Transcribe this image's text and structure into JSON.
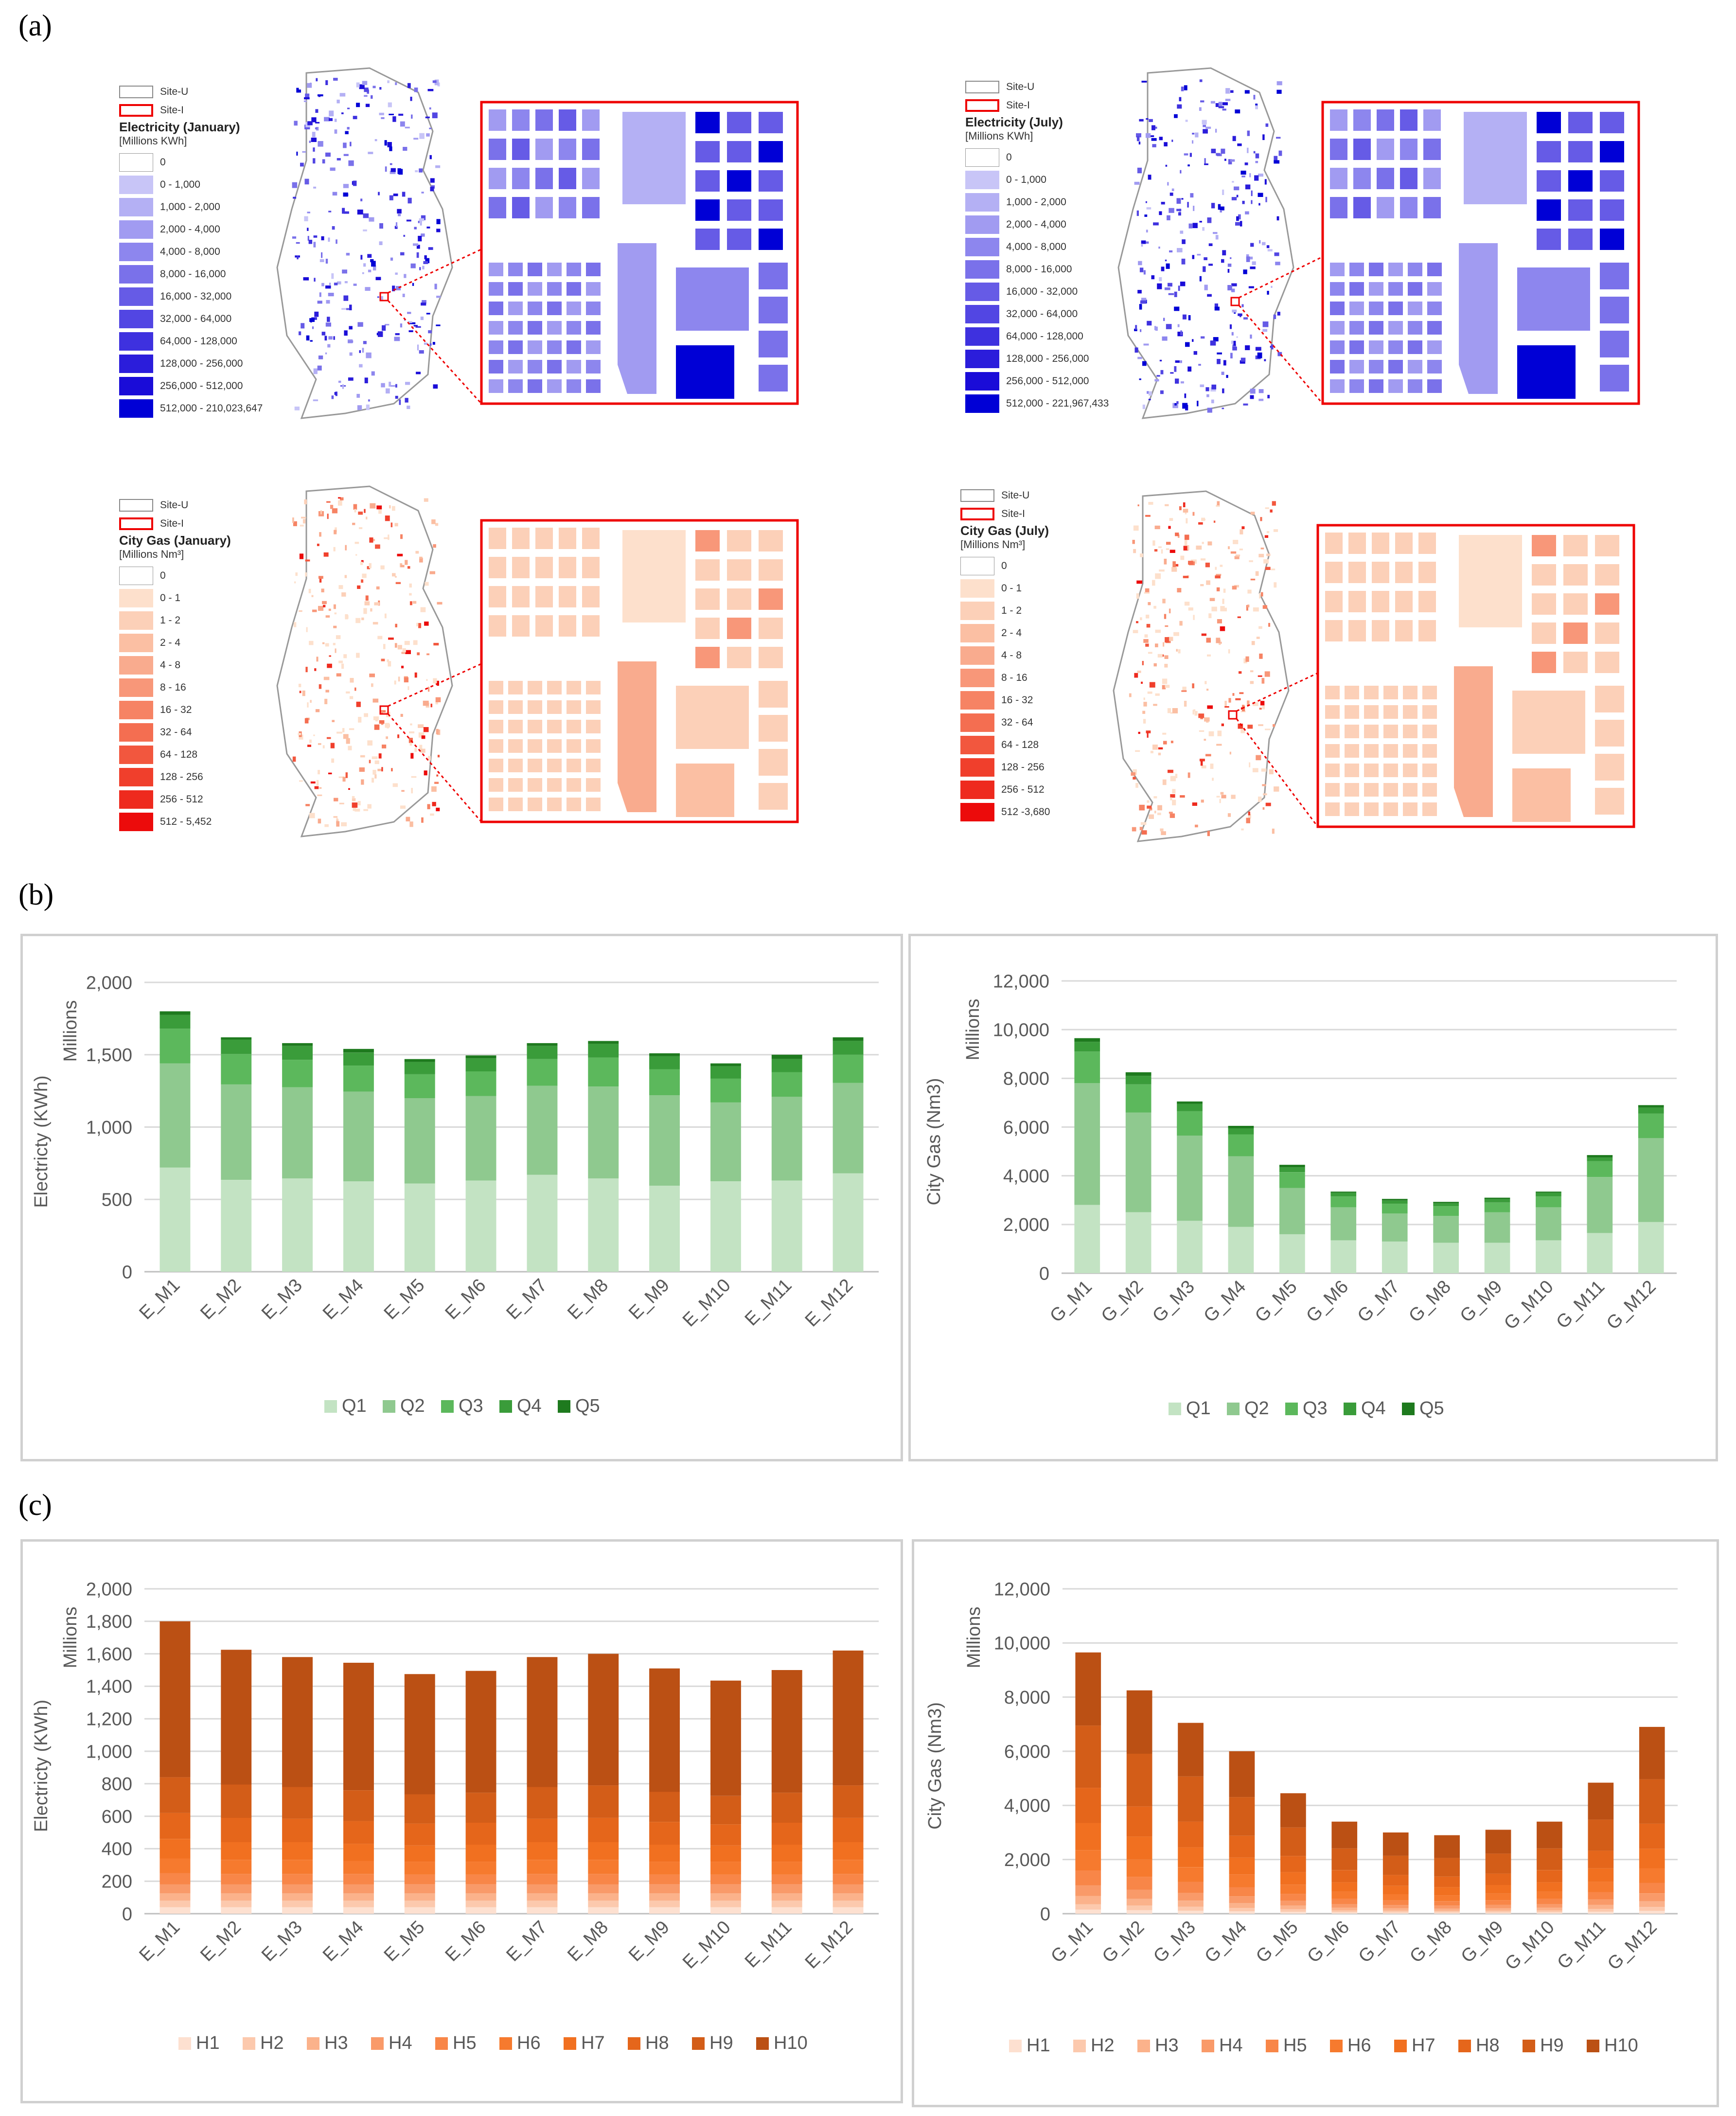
{
  "labels": {
    "a": "(a)",
    "b": "(b)",
    "c": "(c)"
  },
  "maps": {
    "site_u": "Site-U",
    "site_i": "Site-I",
    "elec_jan": {
      "title": "Electricity (January)",
      "unit": "[Millions KWh]",
      "classes": [
        "0",
        "0 - 1,000",
        "1,000 - 2,000",
        "2,000 - 4,000",
        "4,000 - 8,000",
        "8,000 - 16,000",
        "16,000 - 32,000",
        "32,000 - 64,000",
        "64,000 - 128,000",
        "128,000 - 256,000",
        "256,000 - 512,000",
        "512,000 - 210,023,647"
      ]
    },
    "elec_jul": {
      "title": "Electricity (July)",
      "unit": "[Millions KWh]",
      "classes": [
        "0",
        "0 - 1,000",
        "1,000 - 2,000",
        "2,000 - 4,000",
        "4,000 - 8,000",
        "8,000 - 16,000",
        "16,000 - 32,000",
        "32,000 - 64,000",
        "64,000 - 128,000",
        "128,000 - 256,000",
        "256,000 - 512,000",
        "512,000 - 221,967,433"
      ]
    },
    "gas_jan": {
      "title": "City Gas (January)",
      "unit": "[Millions Nm³]",
      "classes": [
        "0",
        "0 - 1",
        "1 - 2",
        "2 - 4",
        "4 - 8",
        "8 - 16",
        "16 - 32",
        "32 - 64",
        "64 - 128",
        "128 - 256",
        "256 - 512",
        "512 - 5,452"
      ]
    },
    "gas_jul": {
      "title": "City Gas (July)",
      "unit": "[Millions Nm³]",
      "classes": [
        "0",
        "0 - 1",
        "1 - 2",
        "2 - 4",
        "4 - 8",
        "8 - 16",
        "16 - 32",
        "32 - 64",
        "64 - 128",
        "128 - 256",
        "256 - 512",
        "512 -3,680"
      ]
    },
    "colors": {
      "blue": [
        "#ffffff",
        "#c8c5f7",
        "#b4b0f4",
        "#a19bf1",
        "#8d86ee",
        "#7a71ea",
        "#665be6",
        "#5246e3",
        "#3e31df",
        "#2b1ddb",
        "#1a0cd8",
        "#0000d6"
      ],
      "red": [
        "#ffffff",
        "#fde0cc",
        "#fcd0b8",
        "#fbbfa3",
        "#f9ab8e",
        "#f89779",
        "#f68364",
        "#f46e51",
        "#f2573e",
        "#f03f2c",
        "#ee2a1e",
        "#ec0b0b"
      ]
    }
  },
  "chart_data": [
    {
      "id": "b_elec",
      "type": "bar",
      "stacked": true,
      "ylabel": "Electricty (KWh)",
      "unit_label": "Millions",
      "ylim": [
        0,
        2000
      ],
      "yticks": [
        "0",
        "500",
        "1,000",
        "1,500",
        "2,000"
      ],
      "categories": [
        "E_M1",
        "E_M2",
        "E_M3",
        "E_M4",
        "E_M5",
        "E_M6",
        "E_M7",
        "E_M8",
        "E_M9",
        "E_M10",
        "E_M11",
        "E_M12"
      ],
      "series": [
        {
          "name": "Q1",
          "color": "#c3e3c3",
          "values": [
            720,
            635,
            645,
            625,
            610,
            630,
            670,
            645,
            595,
            625,
            630,
            680
          ]
        },
        {
          "name": "Q2",
          "color": "#8fc98f",
          "values": [
            720,
            660,
            630,
            620,
            590,
            585,
            615,
            635,
            625,
            545,
            580,
            625
          ]
        },
        {
          "name": "Q3",
          "color": "#5cb85c",
          "values": [
            240,
            210,
            190,
            180,
            165,
            170,
            185,
            200,
            180,
            165,
            170,
            195
          ]
        },
        {
          "name": "Q4",
          "color": "#3a9c3a",
          "values": [
            95,
            100,
            95,
            90,
            85,
            90,
            90,
            95,
            90,
            85,
            90,
            95
          ]
        },
        {
          "name": "Q5",
          "color": "#1e7a1e",
          "values": [
            25,
            15,
            20,
            25,
            20,
            20,
            20,
            20,
            20,
            20,
            30,
            25
          ]
        }
      ]
    },
    {
      "id": "b_gas",
      "type": "bar",
      "stacked": true,
      "ylabel": "City Gas (Nm3)",
      "unit_label": "Millions",
      "ylim": [
        0,
        12000
      ],
      "yticks": [
        "0",
        "2,000",
        "4,000",
        "6,000",
        "8,000",
        "10,000",
        "12,000"
      ],
      "categories": [
        "G_M1",
        "G_M2",
        "G_M3",
        "G_M4",
        "G_M5",
        "G_M6",
        "G_M7",
        "G_M8",
        "G_M9",
        "G_M10",
        "G_M11",
        "G_M12"
      ],
      "series": [
        {
          "name": "Q1",
          "color": "#c3e3c3",
          "values": [
            2800,
            2500,
            2150,
            1900,
            1600,
            1350,
            1300,
            1250,
            1250,
            1350,
            1650,
            2100
          ]
        },
        {
          "name": "Q2",
          "color": "#8fc98f",
          "values": [
            5000,
            4100,
            3500,
            2900,
            1900,
            1350,
            1150,
            1100,
            1250,
            1350,
            2300,
            3450
          ]
        },
        {
          "name": "Q3",
          "color": "#5cb85c",
          "values": [
            1300,
            1150,
            1000,
            900,
            650,
            450,
            400,
            400,
            400,
            450,
            650,
            1000
          ]
        },
        {
          "name": "Q4",
          "color": "#3a9c3a",
          "values": [
            400,
            350,
            300,
            250,
            200,
            150,
            130,
            120,
            140,
            150,
            150,
            250
          ]
        },
        {
          "name": "Q5",
          "color": "#1e7a1e",
          "values": [
            150,
            150,
            100,
            100,
            100,
            50,
            70,
            60,
            60,
            50,
            100,
            100
          ]
        }
      ]
    },
    {
      "id": "c_elec",
      "type": "bar",
      "stacked": true,
      "ylabel": "Electricty (KWh)",
      "unit_label": "Millions",
      "ylim": [
        0,
        2000
      ],
      "yticks": [
        "0",
        "200",
        "400",
        "600",
        "800",
        "1,000",
        "1,200",
        "1,400",
        "1,600",
        "1,800",
        "2,000"
      ],
      "categories": [
        "E_M1",
        "E_M2",
        "E_M3",
        "E_M4",
        "E_M5",
        "E_M6",
        "E_M7",
        "E_M8",
        "E_M9",
        "E_M10",
        "E_M11",
        "E_M12"
      ],
      "series": [
        {
          "name": "H1",
          "color": "#fde0d0",
          "values": [
            40,
            40,
            40,
            40,
            40,
            40,
            40,
            40,
            40,
            40,
            40,
            40
          ]
        },
        {
          "name": "H2",
          "color": "#fcc9ad",
          "values": [
            40,
            40,
            40,
            40,
            40,
            40,
            40,
            40,
            40,
            40,
            40,
            40
          ]
        },
        {
          "name": "H3",
          "color": "#fbb28b",
          "values": [
            45,
            45,
            45,
            45,
            45,
            45,
            45,
            45,
            45,
            45,
            45,
            45
          ]
        },
        {
          "name": "H4",
          "color": "#f99a69",
          "values": [
            55,
            55,
            55,
            55,
            55,
            55,
            55,
            55,
            55,
            55,
            55,
            55
          ]
        },
        {
          "name": "H5",
          "color": "#f88648",
          "values": [
            70,
            65,
            65,
            65,
            60,
            60,
            65,
            65,
            60,
            60,
            60,
            65
          ]
        },
        {
          "name": "H6",
          "color": "#f67a2e",
          "values": [
            90,
            85,
            85,
            80,
            80,
            80,
            85,
            85,
            80,
            80,
            80,
            85
          ]
        },
        {
          "name": "H7",
          "color": "#f17020",
          "values": [
            120,
            110,
            110,
            105,
            100,
            105,
            110,
            110,
            105,
            100,
            105,
            110
          ]
        },
        {
          "name": "H8",
          "color": "#e5661b",
          "values": [
            160,
            150,
            145,
            140,
            135,
            135,
            145,
            150,
            140,
            130,
            135,
            150
          ]
        },
        {
          "name": "H9",
          "color": "#d35d18",
          "values": [
            220,
            205,
            195,
            190,
            180,
            185,
            195,
            200,
            185,
            175,
            185,
            200
          ]
        },
        {
          "name": "H10",
          "color": "#bb5014",
          "values": [
            960,
            830,
            800,
            785,
            740,
            750,
            800,
            810,
            760,
            710,
            755,
            830
          ]
        }
      ]
    },
    {
      "id": "c_gas",
      "type": "bar",
      "stacked": true,
      "ylabel": "City Gas (Nm3)",
      "unit_label": "Millions",
      "ylim": [
        0,
        12000
      ],
      "yticks": [
        "0",
        "2,000",
        "4,000",
        "6,000",
        "8,000",
        "10,000",
        "12,000"
      ],
      "categories": [
        "G_M1",
        "G_M2",
        "G_M3",
        "G_M4",
        "G_M5",
        "G_M6",
        "G_M7",
        "G_M8",
        "G_M9",
        "G_M10",
        "G_M11",
        "G_M12"
      ],
      "series": [
        {
          "name": "H1",
          "color": "#fde0d0",
          "values": [
            150,
            130,
            110,
            90,
            70,
            50,
            45,
            40,
            45,
            50,
            75,
            105
          ]
        },
        {
          "name": "H2",
          "color": "#fcc9ad",
          "values": [
            200,
            170,
            150,
            120,
            95,
            70,
            65,
            60,
            65,
            70,
            100,
            145
          ]
        },
        {
          "name": "H3",
          "color": "#fbb28b",
          "values": [
            300,
            250,
            220,
            180,
            140,
            100,
            90,
            85,
            90,
            100,
            150,
            210
          ]
        },
        {
          "name": "H4",
          "color": "#f99a69",
          "values": [
            400,
            340,
            290,
            250,
            180,
            140,
            120,
            115,
            125,
            140,
            200,
            290
          ]
        },
        {
          "name": "H5",
          "color": "#f88648",
          "values": [
            550,
            470,
            400,
            340,
            250,
            190,
            170,
            160,
            175,
            190,
            275,
            390
          ]
        },
        {
          "name": "H6",
          "color": "#f67a2e",
          "values": [
            750,
            640,
            550,
            470,
            340,
            260,
            230,
            220,
            240,
            260,
            375,
            540
          ]
        },
        {
          "name": "H7",
          "color": "#f17020",
          "values": [
            1000,
            850,
            730,
            620,
            460,
            350,
            310,
            300,
            320,
            350,
            500,
            715
          ]
        },
        {
          "name": "H8",
          "color": "#e5661b",
          "values": [
            1300,
            1110,
            950,
            810,
            600,
            450,
            400,
            390,
            420,
            450,
            650,
            930
          ]
        },
        {
          "name": "H9",
          "color": "#d35d18",
          "values": [
            2300,
            1950,
            1670,
            1430,
            1050,
            800,
            710,
            690,
            740,
            800,
            1150,
            1640
          ]
        },
        {
          "name": "H10",
          "color": "#bb5014",
          "values": [
            2700,
            2340,
            1980,
            1690,
            1265,
            990,
            860,
            840,
            880,
            990,
            1365,
            1935
          ]
        }
      ]
    }
  ]
}
